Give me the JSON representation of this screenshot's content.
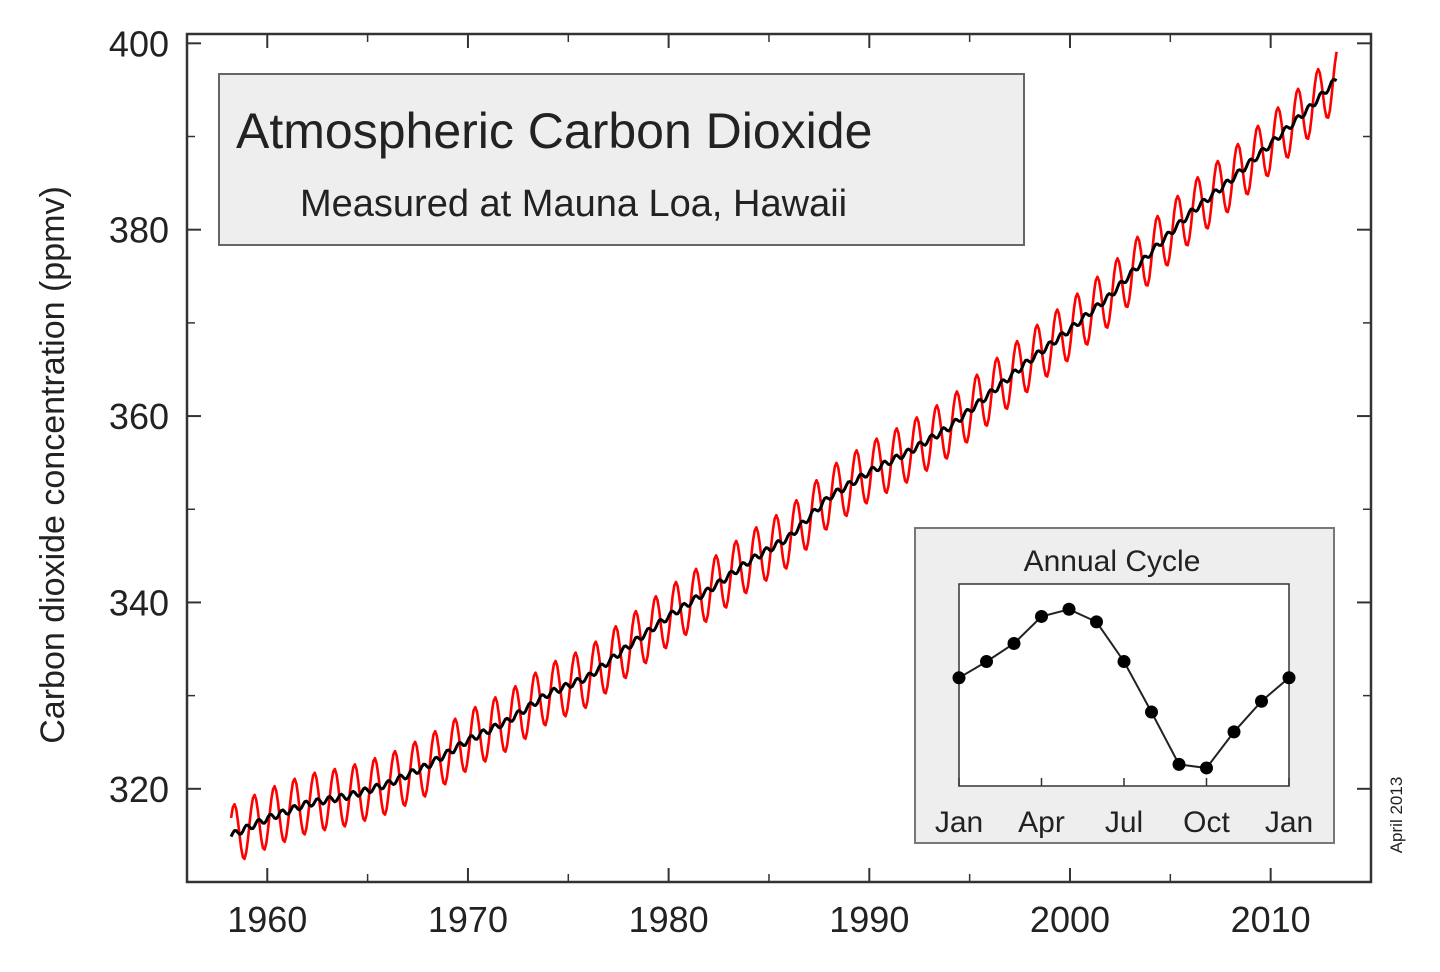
{
  "chart_data": {
    "type": "line",
    "title": "Atmospheric Carbon Dioxide",
    "subtitle": "Measured at Mauna Loa, Hawaii",
    "xlabel": "",
    "ylabel": "Carbon dioxide concentration (ppmv)",
    "xlim": [
      1956,
      2015
    ],
    "ylim": [
      310,
      401
    ],
    "xticks": [
      1960,
      1970,
      1980,
      1990,
      2000,
      2010
    ],
    "yticks": [
      320,
      340,
      360,
      380,
      400
    ],
    "grid": false,
    "credit": "April 2013",
    "colors": {
      "monthly": "#ff0000",
      "trend": "#000000"
    },
    "series": [
      {
        "role": "monthly",
        "note": "seasonal oscillation about the trend",
        "amplitude_ppmv": 3.2
      },
      {
        "role": "trend",
        "x": [
          1958.2,
          1960,
          1962,
          1964,
          1966,
          1968,
          1970,
          1972,
          1974,
          1976,
          1978,
          1980,
          1982,
          1984,
          1986,
          1988,
          1990,
          1992,
          1994,
          1996,
          1998,
          2000,
          2002,
          2004,
          2006,
          2008,
          2010,
          2012,
          2013.3
        ],
        "y": [
          315,
          316.8,
          318.4,
          319.2,
          320.5,
          322.5,
          325.2,
          327.3,
          330.2,
          332.0,
          335.3,
          338.5,
          341.3,
          344.4,
          347.0,
          351.3,
          354.0,
          356.2,
          358.8,
          362.4,
          366.0,
          369.3,
          372.9,
          377.5,
          381.8,
          385.3,
          389.2,
          393.2,
          396.2
        ]
      }
    ],
    "inset": {
      "title": "Annual Cycle",
      "xticks": [
        "Jan",
        "Apr",
        "Jul",
        "Oct",
        "Jan"
      ],
      "x": [
        0,
        1,
        2,
        3,
        4,
        5,
        6,
        7,
        8,
        9,
        10,
        11,
        12
      ],
      "y": [
        0.0,
        0.9,
        1.9,
        3.4,
        3.8,
        3.1,
        0.9,
        -1.9,
        -4.8,
        -5.0,
        -3.0,
        -1.3,
        0.0
      ],
      "ylim": [
        -6,
        5.2
      ]
    }
  }
}
